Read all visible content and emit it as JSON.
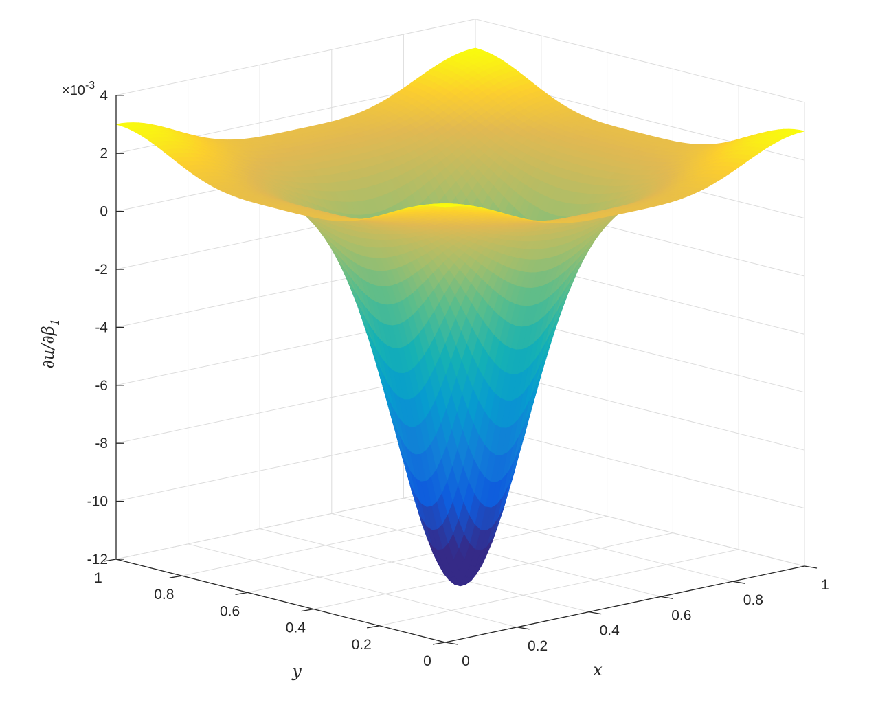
{
  "chart_data": {
    "type": "surface",
    "title": "",
    "xlabel": "x",
    "ylabel": "y",
    "zlabel": "∂u/∂β₁",
    "zlabel_parts": {
      "main": "∂u/∂β",
      "sub": "1"
    },
    "z_multiplier": {
      "times": "×",
      "base": "10",
      "exp": "-3"
    },
    "xlim": [
      0,
      1
    ],
    "ylim": [
      0,
      1
    ],
    "zlim": [
      -12,
      4
    ],
    "x_ticks": [
      "0",
      "0.2",
      "0.4",
      "0.6",
      "0.8",
      "1"
    ],
    "y_ticks": [
      "0",
      "0.2",
      "0.4",
      "0.6",
      "0.8",
      "1"
    ],
    "z_ticks": [
      "-12",
      "-10",
      "-8",
      "-6",
      "-4",
      "-2",
      "0",
      "2",
      "4"
    ],
    "grid": true,
    "colormap": "parula",
    "surface_samples": {
      "z_min_at_center": -11.3,
      "z_at_corners": 3.0,
      "z_at_edge_midpoints": 0.0
    }
  }
}
